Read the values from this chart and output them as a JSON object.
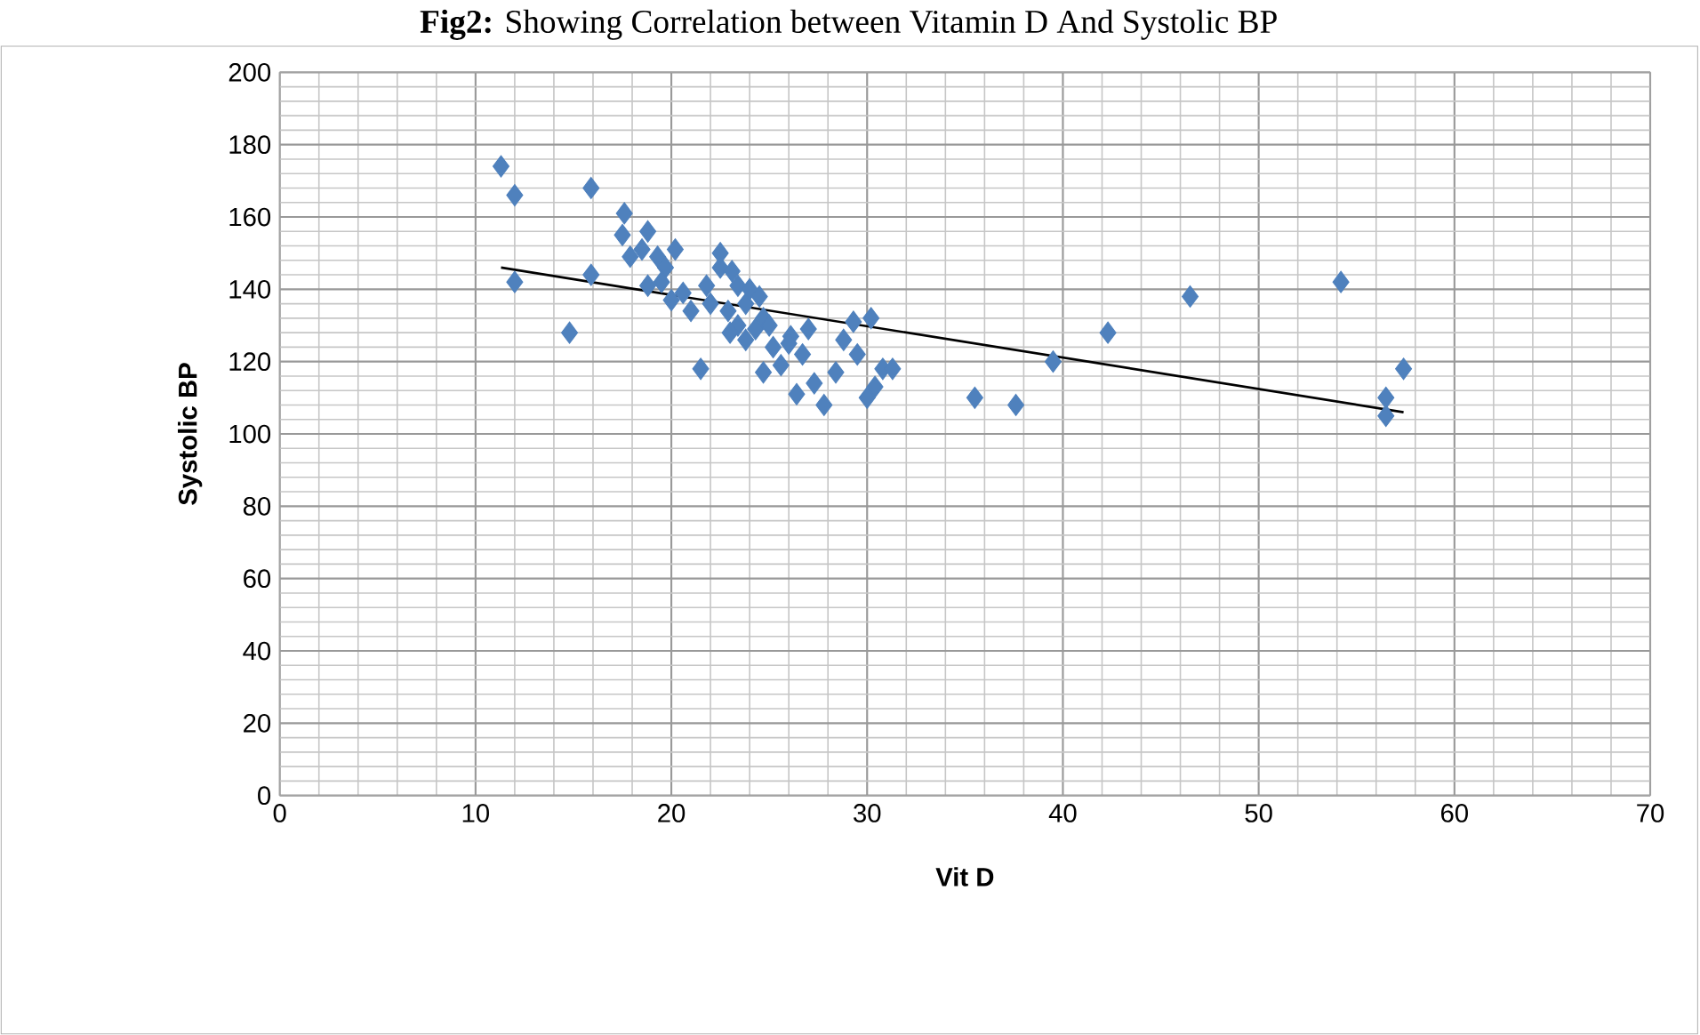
{
  "chart_data": {
    "type": "scatter",
    "title": "**Fig2:** Showing Correlation between Vitamin D And Systolic BP",
    "xlabel": "Vit D",
    "ylabel": "Systolic BP",
    "xlim": [
      0,
      70
    ],
    "xticks": [
      0,
      10,
      20,
      30,
      40,
      50,
      60,
      70
    ],
    "ylim": [
      0,
      200
    ],
    "yticks": [
      0,
      20,
      40,
      60,
      80,
      100,
      120,
      140,
      160,
      180,
      200
    ],
    "grid": true,
    "marker": "diamond",
    "series": [
      {
        "color": "#4f81bd",
        "x": [
          11.3,
          12,
          12,
          14.8,
          15.9,
          15.9,
          17.6,
          17.5,
          17.9,
          18.8,
          18.5,
          19.3,
          19.7,
          20.2,
          19.5,
          18.8,
          20.6,
          20,
          21.5,
          21.8,
          22.5,
          22.5,
          23.1,
          23.4,
          23.8,
          22.9,
          23.4,
          24.3,
          24.7,
          23.8,
          25.2,
          24.7,
          25.6,
          26.1,
          27,
          26.7,
          26.4,
          27.3,
          27.8,
          28.4,
          28.8,
          29.3,
          30.2,
          29.5,
          30.4,
          30.8,
          31.3,
          35.5,
          37.6,
          39.5,
          42.3,
          46.5,
          54.2,
          57.4,
          56.5,
          56.5,
          24,
          24.5,
          23,
          22,
          21,
          25,
          26,
          30
        ],
        "values": [
          174,
          166,
          142,
          128,
          168,
          144,
          161,
          155,
          149,
          156,
          151,
          149,
          146,
          151,
          142,
          141,
          139,
          137,
          118,
          141,
          146,
          150,
          145,
          141,
          136,
          134,
          130,
          129,
          132,
          126,
          124,
          117,
          119,
          127,
          129,
          122,
          111,
          114,
          108,
          117,
          126,
          131,
          132,
          122,
          113,
          118,
          118,
          110,
          108,
          120,
          128,
          138,
          142,
          118,
          110,
          105,
          140,
          138,
          128,
          136,
          134,
          130,
          125,
          110
        ]
      },
      {
        "type": "line",
        "color": "#000000",
        "marker": "none",
        "x": [
          11.3,
          57.4
        ],
        "values": [
          146,
          106
        ]
      }
    ]
  }
}
